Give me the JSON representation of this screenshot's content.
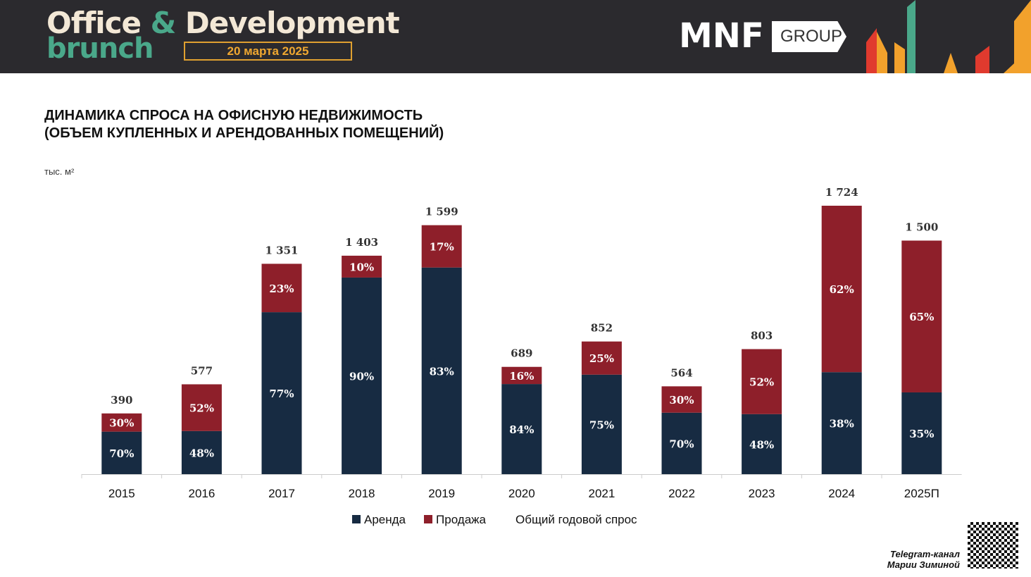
{
  "banner": {
    "event_line1_a": "Office ",
    "event_amp": "&",
    "event_line1_b": " Development",
    "event_line2": "brunch",
    "date": "20 марта 2025",
    "logo_mnf": "MNF",
    "logo_group": "GROUP"
  },
  "title_line1": "ДИНАМИКА СПРОСА НА ОФИСНУЮ НЕДВИЖИМОСТЬ",
  "title_line2": "(ОБЪЕМ КУПЛЕННЫХ И АРЕНДОВАННЫХ ПОМЕЩЕНИЙ)",
  "unit": "тыс. м²",
  "footer": {
    "telegram_line1": "Telegram-канал",
    "telegram_line2": "Марии Зиминой"
  },
  "colors": {
    "rent": "#172b42",
    "sale": "#8e1f2a"
  },
  "chart_data": {
    "type": "bar",
    "stacked": true,
    "categories": [
      "2015",
      "2016",
      "2017",
      "2018",
      "2019",
      "2020",
      "2021",
      "2022",
      "2023",
      "2024",
      "2025П"
    ],
    "totals": [
      390,
      577,
      1351,
      1403,
      1599,
      689,
      852,
      564,
      803,
      1724,
      1500
    ],
    "total_labels": [
      "390",
      "577",
      "1 351",
      "1 403",
      "1 599",
      "689",
      "852",
      "564",
      "803",
      "1 724",
      "1 500"
    ],
    "series": [
      {
        "name": "Аренда",
        "percent": [
          70,
          48,
          77,
          90,
          83,
          84,
          75,
          70,
          48,
          38,
          35
        ]
      },
      {
        "name": "Продажа",
        "percent": [
          30,
          52,
          23,
          10,
          17,
          16,
          25,
          30,
          52,
          62,
          65
        ]
      }
    ],
    "legend": [
      "Аренда",
      "Продажа",
      "Общий годовой спрос"
    ],
    "legend_position": "bottom",
    "ylim": [
      0,
      1724
    ]
  }
}
